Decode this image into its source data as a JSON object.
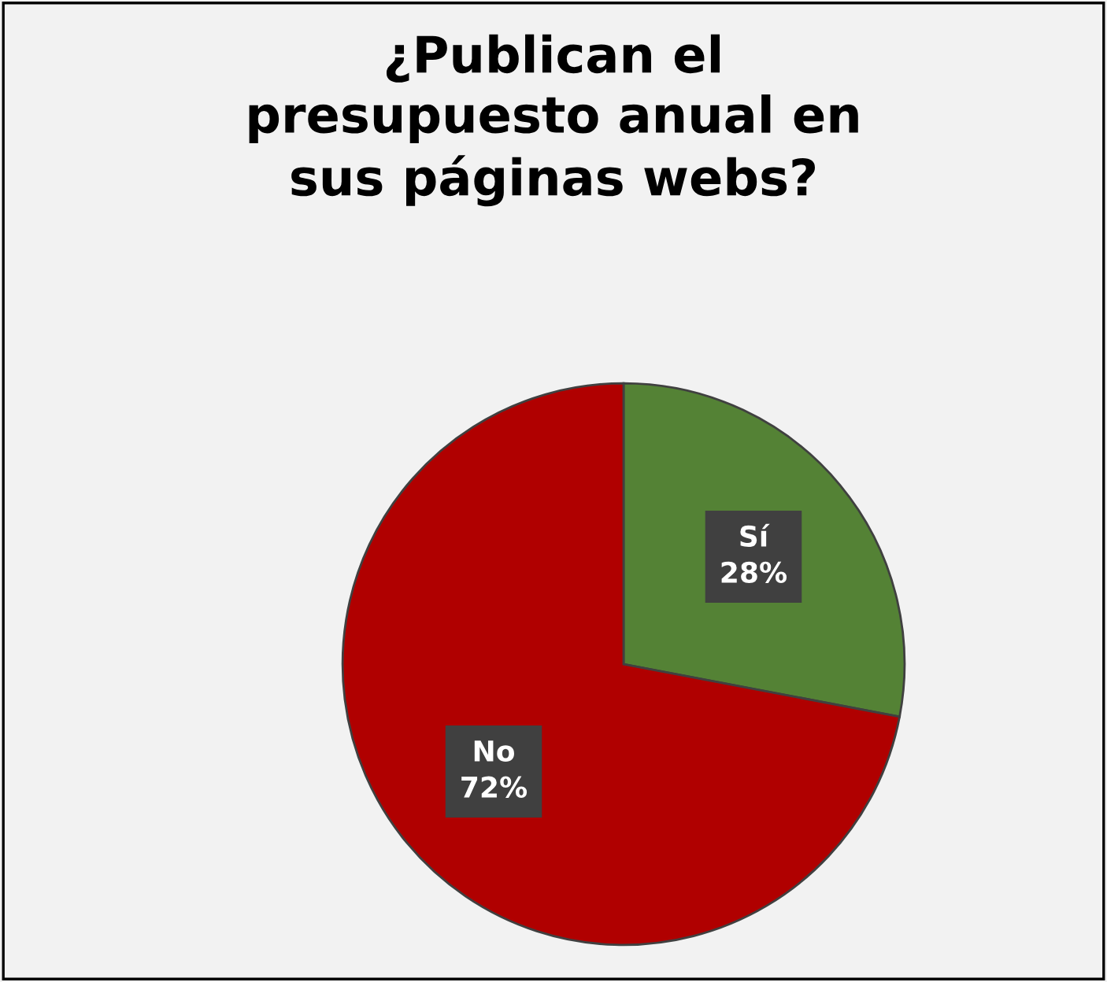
{
  "chart_data": {
    "type": "pie",
    "title": "¿Publican el presupuesto anual en sus páginas webs?",
    "categories": [
      "Sí",
      "No"
    ],
    "values": [
      28,
      72
    ],
    "value_labels": [
      "28%",
      "72%"
    ],
    "colors": [
      "#548235",
      "#b00000"
    ],
    "legend": false
  }
}
